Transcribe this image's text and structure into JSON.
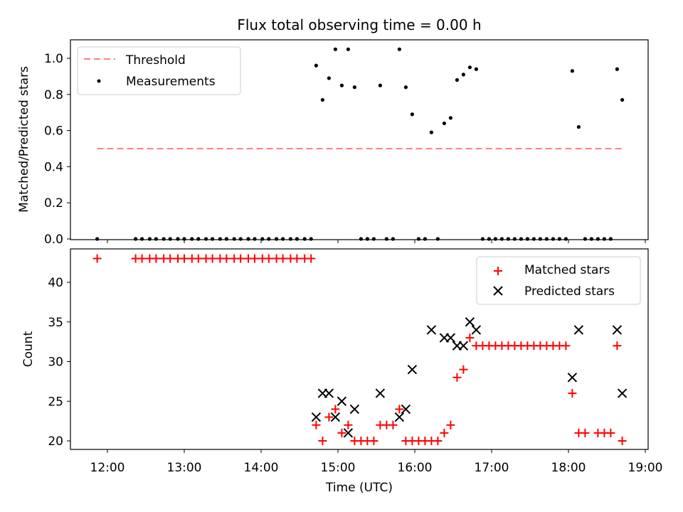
{
  "chart_data": [
    {
      "type": "scatter",
      "title": "Flux total observing time = 0.00 h",
      "xlabel": "",
      "ylabel": "Matched/Predicted stars",
      "xlim": [
        "11:30",
        "19:00"
      ],
      "ylim": [
        0,
        1.1
      ],
      "yticks": [
        "0.0",
        "0.2",
        "0.4",
        "0.6",
        "0.8",
        "1.0"
      ],
      "grid": false,
      "legend_position": "upper-left",
      "threshold": {
        "name": "Threshold",
        "value": 0.5,
        "x_start": "11:52",
        "x_end": "18:42",
        "color": "#ff8080"
      },
      "measurements": {
        "name": "Measurements",
        "color": "#000000",
        "points": [
          [
            "11:52",
            0.0
          ],
          [
            "12:22",
            0.0
          ],
          [
            "12:27",
            0.0
          ],
          [
            "12:33",
            0.0
          ],
          [
            "12:38",
            0.0
          ],
          [
            "12:44",
            0.0
          ],
          [
            "12:49",
            0.0
          ],
          [
            "12:55",
            0.0
          ],
          [
            "13:00",
            0.0
          ],
          [
            "13:06",
            0.0
          ],
          [
            "13:11",
            0.0
          ],
          [
            "13:17",
            0.0
          ],
          [
            "13:22",
            0.0
          ],
          [
            "13:28",
            0.0
          ],
          [
            "13:33",
            0.0
          ],
          [
            "13:39",
            0.0
          ],
          [
            "13:44",
            0.0
          ],
          [
            "13:50",
            0.0
          ],
          [
            "13:55",
            0.0
          ],
          [
            "14:01",
            0.0
          ],
          [
            "14:06",
            0.0
          ],
          [
            "14:12",
            0.0
          ],
          [
            "14:17",
            0.0
          ],
          [
            "14:23",
            0.0
          ],
          [
            "14:28",
            0.0
          ],
          [
            "14:34",
            0.0
          ],
          [
            "14:39",
            0.0
          ],
          [
            "14:43",
            0.96
          ],
          [
            "14:48",
            0.77
          ],
          [
            "14:53",
            0.89
          ],
          [
            "14:58",
            1.05
          ],
          [
            "15:03",
            0.85
          ],
          [
            "15:08",
            1.05
          ],
          [
            "15:13",
            0.84
          ],
          [
            "15:18",
            0.0
          ],
          [
            "15:23",
            0.0
          ],
          [
            "15:28",
            0.0
          ],
          [
            "15:33",
            0.85
          ],
          [
            "15:38",
            0.0
          ],
          [
            "15:43",
            0.0
          ],
          [
            "15:48",
            1.05
          ],
          [
            "15:53",
            0.84
          ],
          [
            "15:58",
            0.69
          ],
          [
            "16:03",
            0.0
          ],
          [
            "16:08",
            0.0
          ],
          [
            "16:13",
            0.59
          ],
          [
            "16:18",
            0.0
          ],
          [
            "16:23",
            0.64
          ],
          [
            "16:28",
            0.67
          ],
          [
            "16:33",
            0.88
          ],
          [
            "16:38",
            0.91
          ],
          [
            "16:43",
            0.95
          ],
          [
            "16:48",
            0.94
          ],
          [
            "16:53",
            0.0
          ],
          [
            "16:58",
            0.0
          ],
          [
            "17:03",
            0.0
          ],
          [
            "17:08",
            0.0
          ],
          [
            "17:13",
            0.0
          ],
          [
            "17:18",
            0.0
          ],
          [
            "17:23",
            0.0
          ],
          [
            "17:28",
            0.0
          ],
          [
            "17:33",
            0.0
          ],
          [
            "17:38",
            0.0
          ],
          [
            "17:43",
            0.0
          ],
          [
            "17:48",
            0.0
          ],
          [
            "17:53",
            0.0
          ],
          [
            "17:58",
            0.0
          ],
          [
            "18:03",
            0.93
          ],
          [
            "18:08",
            0.62
          ],
          [
            "18:13",
            0.0
          ],
          [
            "18:18",
            0.0
          ],
          [
            "18:23",
            0.0
          ],
          [
            "18:28",
            0.0
          ],
          [
            "18:33",
            0.0
          ],
          [
            "18:38",
            0.94
          ],
          [
            "18:42",
            0.77
          ]
        ]
      }
    },
    {
      "type": "scatter",
      "title": "",
      "xlabel": "Time (UTC)",
      "ylabel": "Count",
      "xlim": [
        "11:30",
        "19:00"
      ],
      "ylim": [
        19,
        44
      ],
      "xticks": [
        "12:00",
        "13:00",
        "14:00",
        "15:00",
        "16:00",
        "17:00",
        "18:00",
        "19:00"
      ],
      "yticks": [
        "20",
        "25",
        "30",
        "35",
        "40"
      ],
      "grid": false,
      "legend_position": "upper-right",
      "series": [
        {
          "name": "Matched stars",
          "color": "#ff0000",
          "marker": "plus",
          "points": [
            [
              "11:52",
              43
            ],
            [
              "12:22",
              43
            ],
            [
              "12:27",
              43
            ],
            [
              "12:33",
              43
            ],
            [
              "12:38",
              43
            ],
            [
              "12:44",
              43
            ],
            [
              "12:49",
              43
            ],
            [
              "12:55",
              43
            ],
            [
              "13:00",
              43
            ],
            [
              "13:06",
              43
            ],
            [
              "13:11",
              43
            ],
            [
              "13:17",
              43
            ],
            [
              "13:22",
              43
            ],
            [
              "13:28",
              43
            ],
            [
              "13:33",
              43
            ],
            [
              "13:39",
              43
            ],
            [
              "13:44",
              43
            ],
            [
              "13:50",
              43
            ],
            [
              "13:55",
              43
            ],
            [
              "14:01",
              43
            ],
            [
              "14:06",
              43
            ],
            [
              "14:12",
              43
            ],
            [
              "14:17",
              43
            ],
            [
              "14:23",
              43
            ],
            [
              "14:28",
              43
            ],
            [
              "14:34",
              43
            ],
            [
              "14:39",
              43
            ],
            [
              "14:43",
              22
            ],
            [
              "14:48",
              20
            ],
            [
              "14:53",
              23
            ],
            [
              "14:58",
              24
            ],
            [
              "15:03",
              21
            ],
            [
              "15:08",
              22
            ],
            [
              "15:13",
              20
            ],
            [
              "15:18",
              20
            ],
            [
              "15:23",
              20
            ],
            [
              "15:28",
              20
            ],
            [
              "15:33",
              22
            ],
            [
              "15:38",
              22
            ],
            [
              "15:43",
              22
            ],
            [
              "15:48",
              24
            ],
            [
              "15:53",
              20
            ],
            [
              "15:58",
              20
            ],
            [
              "16:03",
              20
            ],
            [
              "16:08",
              20
            ],
            [
              "16:13",
              20
            ],
            [
              "16:18",
              20
            ],
            [
              "16:23",
              21
            ],
            [
              "16:28",
              22
            ],
            [
              "16:33",
              28
            ],
            [
              "16:38",
              29
            ],
            [
              "16:43",
              33
            ],
            [
              "16:48",
              32
            ],
            [
              "16:53",
              32
            ],
            [
              "16:58",
              32
            ],
            [
              "17:03",
              32
            ],
            [
              "17:08",
              32
            ],
            [
              "17:13",
              32
            ],
            [
              "17:18",
              32
            ],
            [
              "17:23",
              32
            ],
            [
              "17:28",
              32
            ],
            [
              "17:33",
              32
            ],
            [
              "17:38",
              32
            ],
            [
              "17:43",
              32
            ],
            [
              "17:48",
              32
            ],
            [
              "17:53",
              32
            ],
            [
              "17:58",
              32
            ],
            [
              "18:03",
              26
            ],
            [
              "18:08",
              21
            ],
            [
              "18:13",
              21
            ],
            [
              "18:23",
              21
            ],
            [
              "18:28",
              21
            ],
            [
              "18:33",
              21
            ],
            [
              "18:38",
              32
            ],
            [
              "18:42",
              20
            ]
          ]
        },
        {
          "name": "Predicted stars",
          "color": "#000000",
          "marker": "x",
          "points": [
            [
              "14:43",
              23
            ],
            [
              "14:48",
              26
            ],
            [
              "14:53",
              26
            ],
            [
              "14:58",
              23
            ],
            [
              "15:03",
              25
            ],
            [
              "15:08",
              21
            ],
            [
              "15:13",
              24
            ],
            [
              "15:33",
              26
            ],
            [
              "15:48",
              23
            ],
            [
              "15:53",
              24
            ],
            [
              "15:58",
              29
            ],
            [
              "16:13",
              34
            ],
            [
              "16:23",
              33
            ],
            [
              "16:28",
              33
            ],
            [
              "16:33",
              32
            ],
            [
              "16:38",
              32
            ],
            [
              "16:43",
              35
            ],
            [
              "16:48",
              34
            ],
            [
              "18:03",
              28
            ],
            [
              "18:08",
              34
            ],
            [
              "18:38",
              34
            ],
            [
              "18:42",
              26
            ]
          ]
        }
      ]
    }
  ]
}
